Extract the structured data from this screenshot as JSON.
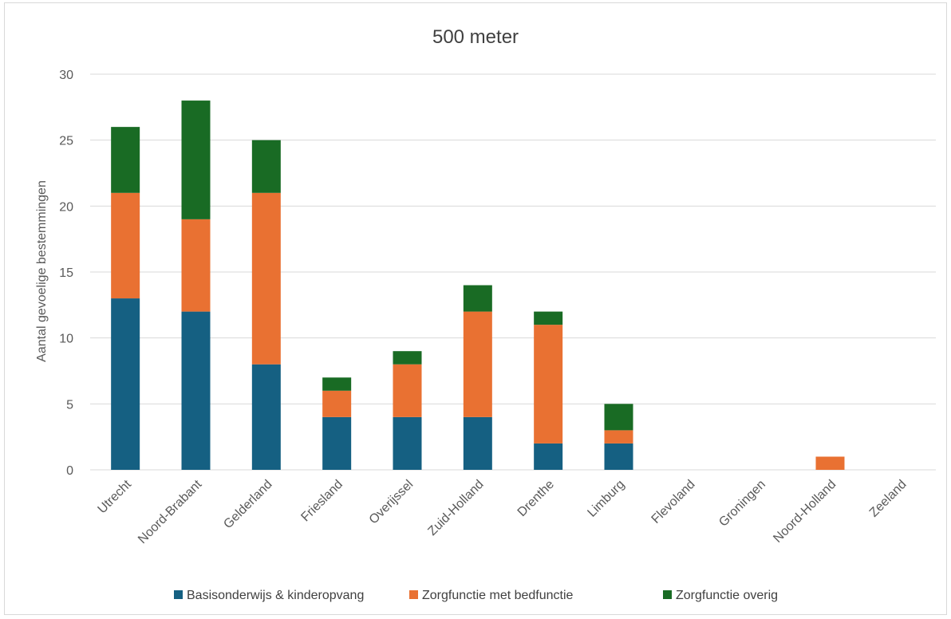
{
  "chart_data": {
    "type": "bar",
    "stacked": true,
    "title": "500 meter",
    "xlabel": "",
    "ylabel": "Aantal gevoelige bestemmingen",
    "ylim": [
      0,
      30
    ],
    "yticks": [
      0,
      5,
      10,
      15,
      20,
      25,
      30
    ],
    "grid": "horizontal",
    "legend_position": "bottom",
    "categories": [
      "Utrecht",
      "Noord-Brabant",
      "Gelderland",
      "Friesland",
      "Overijssel",
      "Zuid-Holland",
      "Drenthe",
      "Limburg",
      "Flevoland",
      "Groningen",
      "Noord-Holland",
      "Zeeland"
    ],
    "series": [
      {
        "name": "Basisonderwijs & kinderopvang",
        "color": "#156082",
        "values": [
          13,
          12,
          8,
          4,
          4,
          4,
          2,
          2,
          0,
          0,
          0,
          0
        ]
      },
      {
        "name": "Zorgfunctie met bedfunctie",
        "color": "#E97132",
        "values": [
          8,
          7,
          13,
          2,
          4,
          8,
          9,
          1,
          0,
          0,
          1,
          0
        ]
      },
      {
        "name": "Zorgfunctie overig",
        "color": "#196B24",
        "values": [
          5,
          9,
          4,
          1,
          1,
          2,
          1,
          2,
          0,
          0,
          0,
          0
        ]
      }
    ]
  }
}
